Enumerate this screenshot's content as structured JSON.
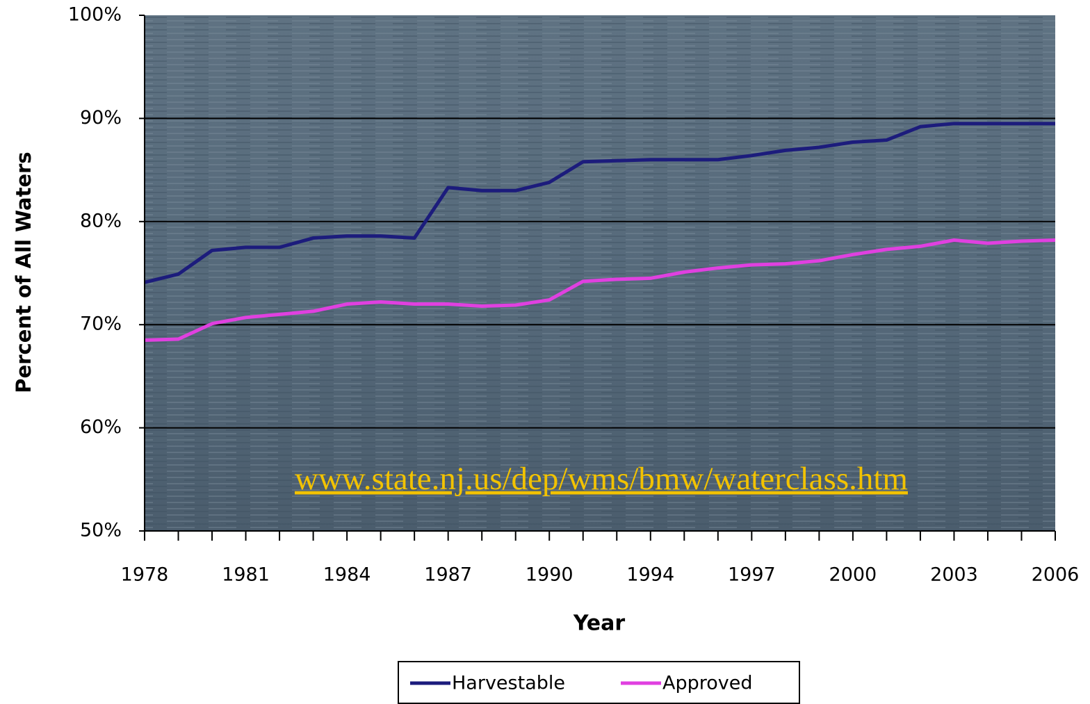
{
  "chart_data": {
    "type": "line",
    "categories": [
      "1978",
      null,
      null,
      "1981",
      null,
      null,
      "1984",
      null,
      null,
      "1987",
      null,
      null,
      "1990",
      null,
      null,
      "1994",
      null,
      null,
      "1997",
      null,
      null,
      "2000",
      null,
      null,
      "2003",
      null,
      null,
      "2006"
    ],
    "series": [
      {
        "name": "Harvestable",
        "color": "#1c1c7c",
        "values": [
          74.1,
          74.9,
          77.2,
          77.5,
          77.5,
          78.4,
          78.6,
          78.6,
          78.4,
          83.3,
          83.0,
          83.0,
          83.8,
          85.8,
          85.9,
          86.0,
          86.0,
          86.0,
          86.4,
          86.9,
          87.2,
          87.7,
          87.9,
          89.2,
          89.5,
          89.5,
          89.5,
          89.5
        ]
      },
      {
        "name": "Approved",
        "color": "#e040e0",
        "values": [
          68.5,
          68.6,
          70.1,
          70.7,
          71.0,
          71.3,
          72.0,
          72.2,
          72.0,
          72.0,
          71.8,
          71.9,
          72.4,
          74.2,
          74.4,
          74.5,
          75.1,
          75.5,
          75.8,
          75.9,
          76.2,
          76.8,
          77.3,
          77.6,
          78.2,
          77.9,
          78.1,
          78.2
        ]
      }
    ],
    "ylim": [
      50,
      100
    ],
    "yticks": [
      {
        "value": 50,
        "label": "50%"
      },
      {
        "value": 60,
        "label": "60%"
      },
      {
        "value": 70,
        "label": "70%"
      },
      {
        "value": 80,
        "label": "80%"
      },
      {
        "value": 90,
        "label": "90%"
      },
      {
        "value": 100,
        "label": "100%"
      }
    ],
    "xlabel": "Year",
    "ylabel": "Percent of All Waters",
    "annotation": "www.state.nj.us/dep/wms/bmw/waterclass.htm",
    "grid": true,
    "legend": "bottom"
  }
}
